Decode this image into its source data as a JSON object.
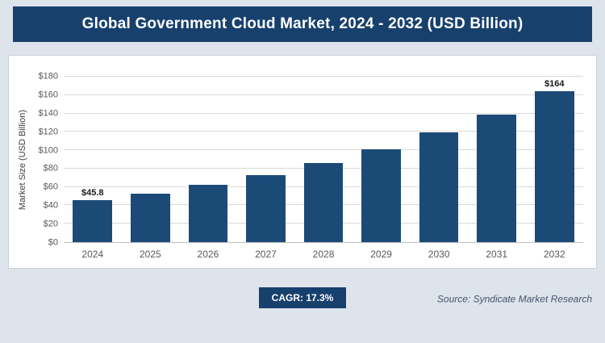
{
  "title": "Global Government Cloud Market, 2024 - 2032 (USD Billion)",
  "footer": {
    "cagr_label": "CAGR: 17.3%",
    "source": "Source: Syndicate Market Research"
  },
  "theme": {
    "navy": "#17406d",
    "bar": "#1c4a77",
    "page_bg": "#dde4ec",
    "panel_bg": "#ffffff",
    "grid": "#d9d9d9",
    "source_color": "#44546a"
  },
  "chart_data": {
    "type": "bar",
    "title": "Global Government Cloud Market, 2024 - 2032 (USD Billion)",
    "xlabel": "",
    "ylabel": "Market Size (USD Billion)",
    "categories": [
      "2024",
      "2025",
      "2026",
      "2027",
      "2028",
      "2029",
      "2030",
      "2031",
      "2032"
    ],
    "values": [
      45.8,
      53,
      62,
      73,
      86,
      101,
      119,
      139,
      164
    ],
    "bar_labels": [
      "$45.8",
      null,
      null,
      null,
      null,
      null,
      null,
      null,
      "$164"
    ],
    "ylim": [
      0,
      180
    ],
    "ytick_step": 20,
    "y_ticks": [
      "$0",
      "$20",
      "$40",
      "$60",
      "$80",
      "$100",
      "$120",
      "$140",
      "$160",
      "$180"
    ],
    "grid": "horizontal",
    "legend": "none",
    "bar_color": "#1c4a77"
  }
}
